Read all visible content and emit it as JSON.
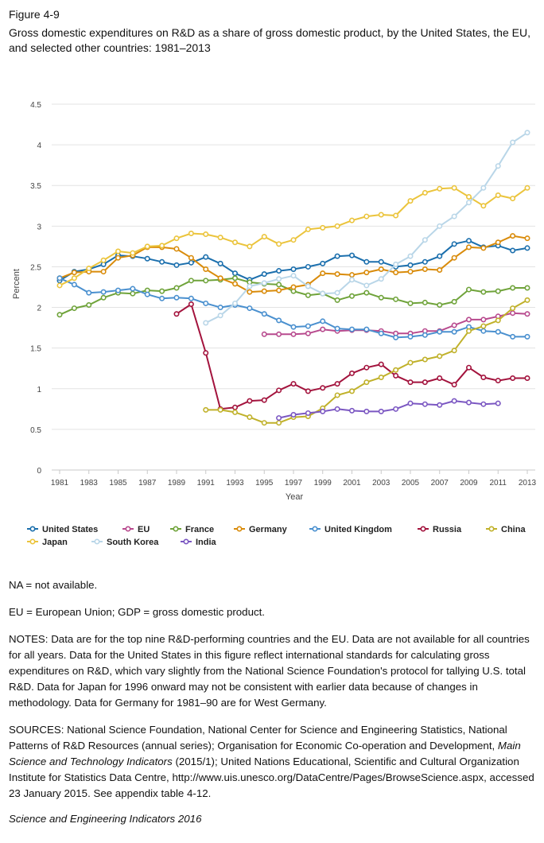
{
  "figure_label": "Figure 4-9",
  "figure_title": "Gross domestic expenditures on R&D as a share of gross domestic product, by the United States, the EU, and selected other countries: 1981–2013",
  "chart_data": {
    "type": "line",
    "xlabel": "Year",
    "ylabel": "Percent",
    "xlim": [
      1981,
      2013
    ],
    "ylim": [
      0,
      4.5
    ],
    "x_ticks": [
      "1981",
      "1983",
      "1985",
      "1987",
      "1989",
      "1991",
      "1993",
      "1995",
      "1997",
      "1999",
      "2001",
      "2003",
      "2005",
      "2007",
      "2009",
      "2011",
      "2013"
    ],
    "y_ticks": [
      "0",
      "0.5",
      "1",
      "1.5",
      "2",
      "2.5",
      "3",
      "3.5",
      "4",
      "4.5"
    ],
    "legend_position": "bottom",
    "grid": "horizontal",
    "x": [
      1981,
      1982,
      1983,
      1984,
      1985,
      1986,
      1987,
      1988,
      1989,
      1990,
      1991,
      1992,
      1993,
      1994,
      1995,
      1996,
      1997,
      1998,
      1999,
      2000,
      2001,
      2002,
      2003,
      2004,
      2005,
      2006,
      2007,
      2008,
      2009,
      2010,
      2011,
      2012,
      2013
    ],
    "series": [
      {
        "name": "United States",
        "color": "#1b6fad",
        "values": [
          2.33,
          2.44,
          2.47,
          2.53,
          2.64,
          2.63,
          2.6,
          2.56,
          2.52,
          2.55,
          2.62,
          2.54,
          2.42,
          2.34,
          2.41,
          2.45,
          2.47,
          2.5,
          2.54,
          2.63,
          2.64,
          2.56,
          2.56,
          2.5,
          2.52,
          2.56,
          2.63,
          2.78,
          2.82,
          2.74,
          2.76,
          2.7,
          2.73
        ]
      },
      {
        "name": "EU",
        "color": "#b84a8e",
        "values": [
          null,
          null,
          null,
          null,
          null,
          null,
          null,
          null,
          null,
          null,
          null,
          null,
          null,
          null,
          1.67,
          1.67,
          1.67,
          1.68,
          1.73,
          1.71,
          1.72,
          1.72,
          1.71,
          1.68,
          1.68,
          1.71,
          1.71,
          1.78,
          1.85,
          1.85,
          1.89,
          1.93,
          1.92
        ]
      },
      {
        "name": "France",
        "color": "#6fa33a",
        "values": [
          1.91,
          1.99,
          2.03,
          2.12,
          2.18,
          2.17,
          2.21,
          2.2,
          2.24,
          2.33,
          2.33,
          2.34,
          2.36,
          2.31,
          2.29,
          2.28,
          2.2,
          2.15,
          2.17,
          2.09,
          2.14,
          2.18,
          2.12,
          2.1,
          2.05,
          2.06,
          2.03,
          2.07,
          2.22,
          2.19,
          2.2,
          2.24,
          2.24
        ]
      },
      {
        "name": "Germany",
        "color": "#d98b0a",
        "values": [
          2.36,
          2.43,
          2.44,
          2.44,
          2.61,
          2.64,
          2.74,
          2.74,
          2.72,
          2.61,
          2.47,
          2.36,
          2.29,
          2.19,
          2.2,
          2.21,
          2.25,
          2.28,
          2.42,
          2.41,
          2.4,
          2.43,
          2.47,
          2.43,
          2.44,
          2.47,
          2.46,
          2.61,
          2.74,
          2.73,
          2.8,
          2.88,
          2.85
        ]
      },
      {
        "name": "United Kingdom",
        "color": "#4a90cf",
        "values": [
          2.36,
          2.28,
          2.18,
          2.19,
          2.21,
          2.23,
          2.16,
          2.11,
          2.12,
          2.11,
          2.05,
          2.0,
          2.03,
          1.99,
          1.92,
          1.84,
          1.76,
          1.77,
          1.83,
          1.74,
          1.73,
          1.73,
          1.68,
          1.63,
          1.64,
          1.66,
          1.7,
          1.7,
          1.76,
          1.71,
          1.7,
          1.64,
          1.64
        ]
      },
      {
        "name": "Russia",
        "color": "#a3133d",
        "values": [
          null,
          null,
          null,
          null,
          null,
          null,
          null,
          null,
          1.92,
          2.04,
          1.44,
          0.75,
          0.77,
          0.85,
          0.86,
          0.98,
          1.06,
          0.97,
          1.01,
          1.06,
          1.19,
          1.26,
          1.3,
          1.16,
          1.08,
          1.08,
          1.13,
          1.05,
          1.26,
          1.14,
          1.1,
          1.13,
          1.13
        ]
      },
      {
        "name": "China",
        "color": "#c0b12a",
        "values": [
          null,
          null,
          null,
          null,
          null,
          null,
          null,
          null,
          null,
          null,
          0.74,
          0.74,
          0.71,
          0.65,
          0.58,
          0.58,
          0.65,
          0.66,
          0.76,
          0.92,
          0.97,
          1.08,
          1.14,
          1.23,
          1.32,
          1.36,
          1.4,
          1.47,
          1.71,
          1.77,
          1.84,
          1.99,
          2.09
        ]
      },
      {
        "name": "Japan",
        "color": "#ebc43c",
        "values": [
          2.27,
          2.36,
          2.48,
          2.58,
          2.69,
          2.67,
          2.75,
          2.76,
          2.85,
          2.91,
          2.9,
          2.86,
          2.8,
          2.75,
          2.87,
          2.78,
          2.83,
          2.96,
          2.98,
          3.0,
          3.07,
          3.12,
          3.14,
          3.13,
          3.31,
          3.41,
          3.46,
          3.47,
          3.36,
          3.25,
          3.38,
          3.34,
          3.47
        ]
      },
      {
        "name": "South Korea",
        "color": "#b9d6e8",
        "values": [
          null,
          null,
          null,
          null,
          null,
          null,
          null,
          null,
          null,
          null,
          1.81,
          1.9,
          2.05,
          2.26,
          2.3,
          2.35,
          2.39,
          2.26,
          2.17,
          2.18,
          2.34,
          2.27,
          2.35,
          2.53,
          2.63,
          2.83,
          3.0,
          3.12,
          3.29,
          3.47,
          3.74,
          4.03,
          4.15
        ]
      },
      {
        "name": "India",
        "color": "#7b57c2",
        "values": [
          null,
          null,
          null,
          null,
          null,
          null,
          null,
          null,
          null,
          null,
          null,
          null,
          null,
          null,
          null,
          0.64,
          0.68,
          0.7,
          0.72,
          0.75,
          0.73,
          0.72,
          0.72,
          0.75,
          0.82,
          0.81,
          0.8,
          0.85,
          0.83,
          0.81,
          0.82,
          null,
          null
        ]
      }
    ]
  },
  "notes": {
    "na": "NA = not available.",
    "abbrev": "EU = European Union; GDP = gross domestic product.",
    "notes_text": "NOTES: Data are for the top nine R&D-performing countries and the EU. Data are not available for all countries for all years. Data for the United States in this figure reflect international standards for calculating gross expenditures on R&D, which vary slightly from the National Science Foundation's protocol for tallying U.S. total R&D. Data for Japan for 1996 onward may not be consistent with earlier data because of changes in methodology. Data for Germany for 1981–90 are for West Germany.",
    "sources_pre": "SOURCES: National Science Foundation, National Center for Science and Engineering Statistics, National Patterns of R&D Resources (annual series); Organisation for Economic Co-operation and Development,",
    "sources_pub": "Main Science and Technology Indicators",
    "sources_post": "(2015/1); United Nations Educational, Scientific and Cultural Organization Institute for Statistics Data Centre, http://www.uis.unesco.org/DataCentre/Pages/BrowseScience.aspx, accessed 23 January 2015. See appendix table 4-12.",
    "credit": "Science and Engineering Indicators 2016"
  }
}
